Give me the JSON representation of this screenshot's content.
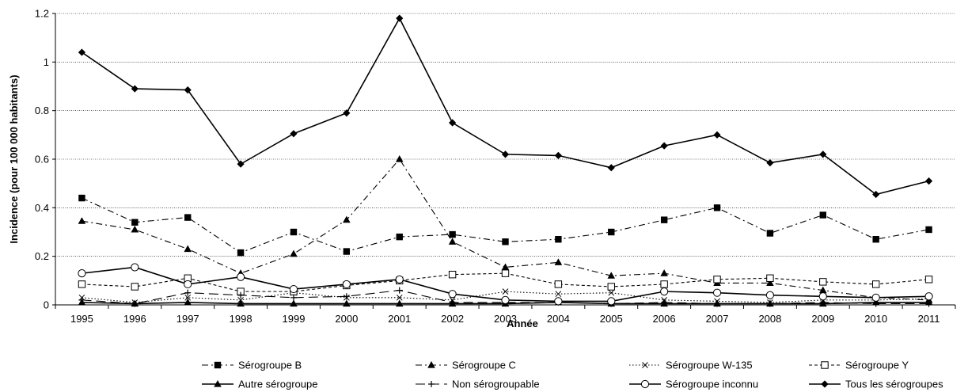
{
  "chart_data": {
    "type": "line",
    "xlabel": "Année",
    "ylabel": "Incidence (pour 100 000 habitants)",
    "ylim": [
      0,
      1.2
    ],
    "yticks": [
      "0",
      "0.2",
      "0.4",
      "0.6",
      "0.8",
      "1",
      "1.2"
    ],
    "grid": "horizontal",
    "legend_position": "bottom",
    "categories": [
      "1995",
      "1996",
      "1997",
      "1998",
      "1999",
      "2000",
      "2001",
      "2002",
      "2003",
      "2004",
      "2005",
      "2006",
      "2007",
      "2008",
      "2009",
      "2010",
      "2011"
    ],
    "series": [
      {
        "name": "Sérogroupe B",
        "line": "dashdot",
        "marker": "square-filled",
        "values": [
          0.44,
          0.34,
          0.36,
          0.215,
          0.3,
          0.22,
          0.28,
          0.29,
          0.26,
          0.27,
          0.3,
          0.35,
          0.4,
          0.295,
          0.37,
          0.27,
          0.31
        ]
      },
      {
        "name": "Sérogroupe C",
        "line": "dashdot",
        "marker": "triangle-filled",
        "values": [
          0.345,
          0.31,
          0.23,
          0.13,
          0.21,
          0.35,
          0.6,
          0.26,
          0.155,
          0.175,
          0.12,
          0.13,
          0.09,
          0.09,
          0.06,
          0.03,
          0.02
        ]
      },
      {
        "name": "Sérogroupe W-135",
        "line": "dotted",
        "marker": "x",
        "values": [
          0.03,
          0.01,
          0.03,
          0.02,
          0.05,
          0.03,
          0.03,
          0.02,
          0.055,
          0.045,
          0.05,
          0.02,
          0.015,
          0.01,
          0.02,
          0.02,
          0.025
        ]
      },
      {
        "name": "Sérogroupe Y",
        "line": "dashed",
        "marker": "square-open",
        "values": [
          0.085,
          0.075,
          0.11,
          0.055,
          0.055,
          0.08,
          0.1,
          0.125,
          0.13,
          0.085,
          0.075,
          0.085,
          0.105,
          0.11,
          0.095,
          0.085,
          0.105
        ]
      },
      {
        "name": "Autre sérogroupe",
        "line": "solid",
        "marker": "triangle-filled",
        "values": [
          0.01,
          0.005,
          0.01,
          0.005,
          0.005,
          0.005,
          0.005,
          0.005,
          0.005,
          0.01,
          0.005,
          0.005,
          0.005,
          0.005,
          0.005,
          0.01,
          0.01
        ]
      },
      {
        "name": "Non sérogroupable",
        "line": "longdash",
        "marker": "plus",
        "values": [
          0.02,
          0.005,
          0.05,
          0.04,
          0.03,
          0.035,
          0.06,
          0.01,
          0.01,
          0.01,
          0.005,
          0.01,
          0.005,
          0.005,
          0.01,
          0.005,
          0.005
        ]
      },
      {
        "name": "Sérogroupe inconnu",
        "line": "solid",
        "marker": "circle-open",
        "values": [
          0.13,
          0.155,
          0.085,
          0.115,
          0.065,
          0.085,
          0.105,
          0.045,
          0.02,
          0.015,
          0.015,
          0.055,
          0.05,
          0.04,
          0.035,
          0.03,
          0.035
        ]
      },
      {
        "name": "Tous les sérogroupes",
        "line": "solid",
        "marker": "diamond-filled",
        "values": [
          1.04,
          0.89,
          0.885,
          0.58,
          0.705,
          0.79,
          1.18,
          0.75,
          0.62,
          0.615,
          0.565,
          0.655,
          0.7,
          0.585,
          0.62,
          0.455,
          0.51
        ]
      }
    ]
  }
}
